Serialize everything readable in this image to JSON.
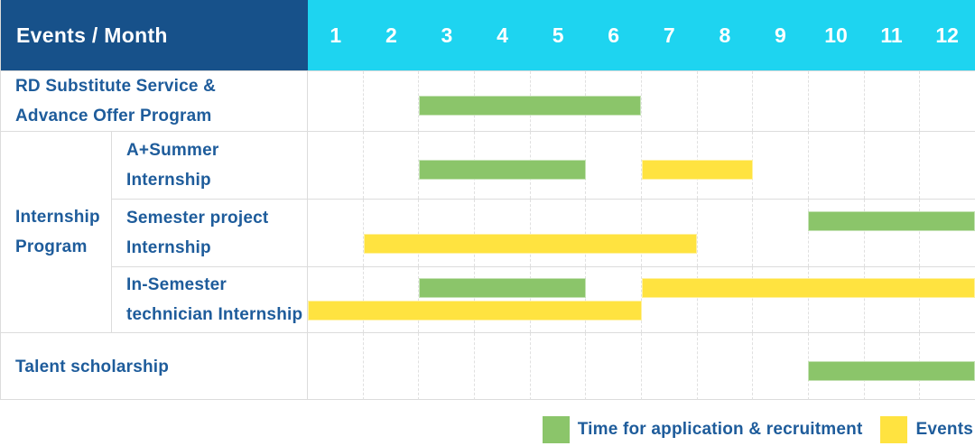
{
  "header": {
    "title": "Events / Month",
    "months": [
      "1",
      "2",
      "3",
      "4",
      "5",
      "6",
      "7",
      "8",
      "9",
      "10",
      "11",
      "12"
    ]
  },
  "colors": {
    "header_bg": "#17518A",
    "months_bg": "#1ED4F0",
    "label_text": "#1E5C9B",
    "application_green": "#8BC56A",
    "events_yellow": "#FFE340",
    "grid_line": "#DCDCDC",
    "header_text": "#FFFFFF"
  },
  "chart_data": {
    "type": "bar",
    "variant": "gantt-schedule",
    "x_axis": {
      "label": "Month",
      "ticks": [
        "1",
        "2",
        "3",
        "4",
        "5",
        "6",
        "7",
        "8",
        "9",
        "10",
        "11",
        "12"
      ],
      "range": [
        1,
        12
      ]
    },
    "series": [
      {
        "key": "application",
        "name": "Time for application & recruitment",
        "color": "#8BC56A"
      },
      {
        "key": "events",
        "name": "Events",
        "color": "#FFE340"
      }
    ],
    "series_colors": {
      "application": "#8BC56A",
      "events": "#FFE340"
    },
    "group_label": "Internship\nProgram",
    "rows": [
      {
        "label": "RD Substitute Service &\nAdvance Offer Program",
        "group": null,
        "bars": [
          {
            "series": "application",
            "start_month": 3,
            "end_month": 6,
            "lane": "center"
          }
        ]
      },
      {
        "label": "A+Summer\nInternship",
        "group": "Internship Program",
        "bars": [
          {
            "series": "application",
            "start_month": 3,
            "end_month": 5,
            "lane": "center"
          },
          {
            "series": "events",
            "start_month": 7,
            "end_month": 8,
            "lane": "center"
          }
        ]
      },
      {
        "label": "Semester project\nInternship",
        "group": "Internship Program",
        "bars": [
          {
            "series": "application",
            "start_month": 10,
            "end_month": 12,
            "lane": "upper"
          },
          {
            "series": "events",
            "start_month": 2,
            "end_month": 7,
            "lane": "lower"
          }
        ]
      },
      {
        "label": "In-Semester\ntechnician Internship",
        "group": "Internship Program",
        "bars": [
          {
            "series": "application",
            "start_month": 3,
            "end_month": 5,
            "lane": "upper"
          },
          {
            "series": "events",
            "start_month": 7,
            "end_month": 12,
            "lane": "upper"
          },
          {
            "series": "events",
            "start_month": 1,
            "end_month": 6,
            "lane": "lower"
          }
        ]
      },
      {
        "label": "Talent scholarship",
        "group": null,
        "bars": [
          {
            "series": "application",
            "start_month": 10,
            "end_month": 12,
            "lane": "center"
          }
        ]
      }
    ]
  },
  "legend": {
    "items": [
      {
        "series": "application",
        "label": "Time for application & recruitment",
        "color": "#8BC56A",
        "icon": "green-square-swatch"
      },
      {
        "series": "events",
        "label": "Events",
        "color": "#FFE340",
        "icon": "yellow-square-swatch"
      }
    ]
  }
}
